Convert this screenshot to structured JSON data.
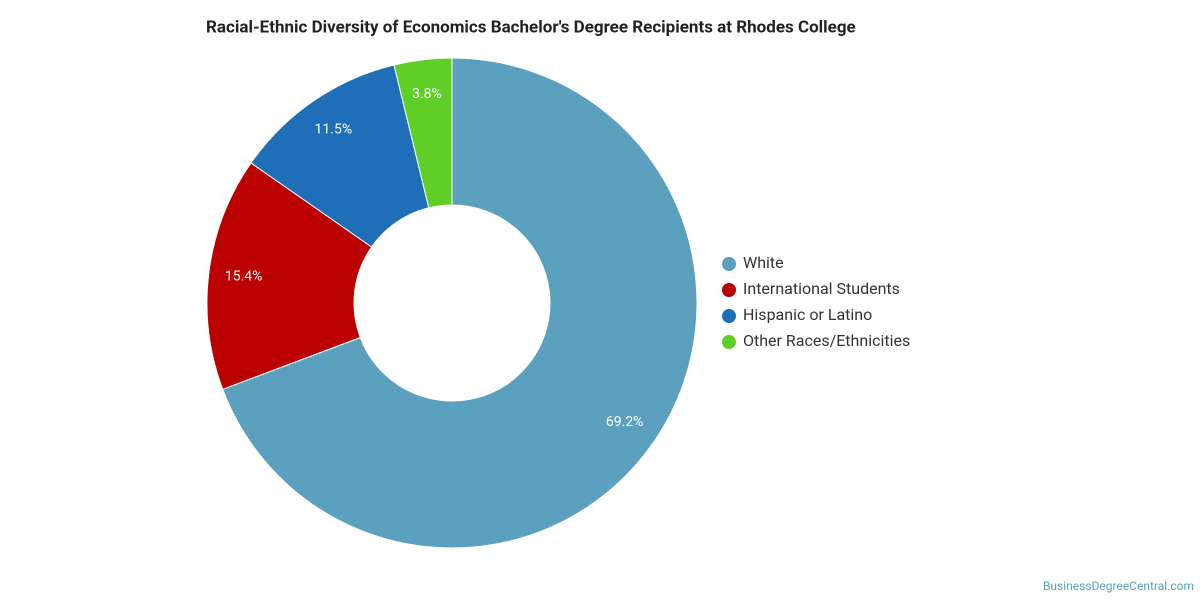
{
  "chart_data": {
    "type": "donut",
    "title": "Racial-Ethnic Diversity of Economics Bachelor's Degree Recipients at Rhodes College",
    "categories": [
      "White",
      "International Students",
      "Hispanic or Latino",
      "Other Races/Ethnicities"
    ],
    "values": [
      69.2,
      15.4,
      11.5,
      3.8
    ],
    "value_labels": [
      "69.2%",
      "15.4%",
      "11.5%",
      "3.8%"
    ],
    "colors": [
      "#5ba1bf",
      "#bb0000",
      "#1f6fb8",
      "#5fcf28"
    ],
    "legend": "right",
    "source": "BusinessDegreeCentral.com"
  }
}
